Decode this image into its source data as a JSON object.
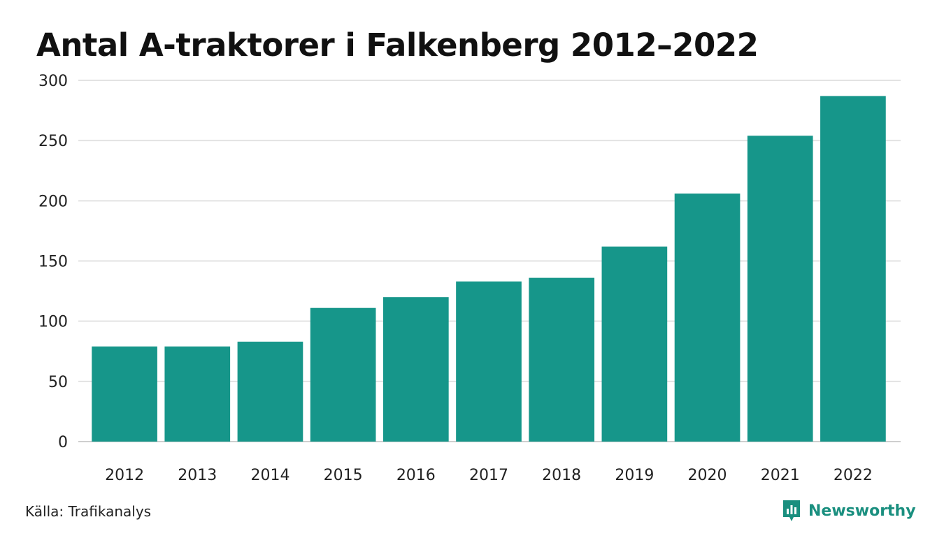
{
  "chart_data": {
    "type": "bar",
    "title": "Antal A-traktorer i Falkenberg 2012–2022",
    "categories": [
      "2012",
      "2013",
      "2014",
      "2015",
      "2016",
      "2017",
      "2018",
      "2019",
      "2020",
      "2021",
      "2022"
    ],
    "values": [
      79,
      79,
      83,
      111,
      120,
      133,
      136,
      162,
      206,
      254,
      287
    ],
    "xlabel": "",
    "ylabel": "",
    "ylim": [
      0,
      300
    ],
    "yticks": [
      0,
      50,
      100,
      150,
      200,
      250,
      300
    ],
    "grid": true,
    "legend": "none",
    "bar_color": "#16968a"
  },
  "footer": {
    "source": "Källa: Trafikanalys",
    "brand": "Newsworthy",
    "brand_color": "#1a8f7f"
  }
}
